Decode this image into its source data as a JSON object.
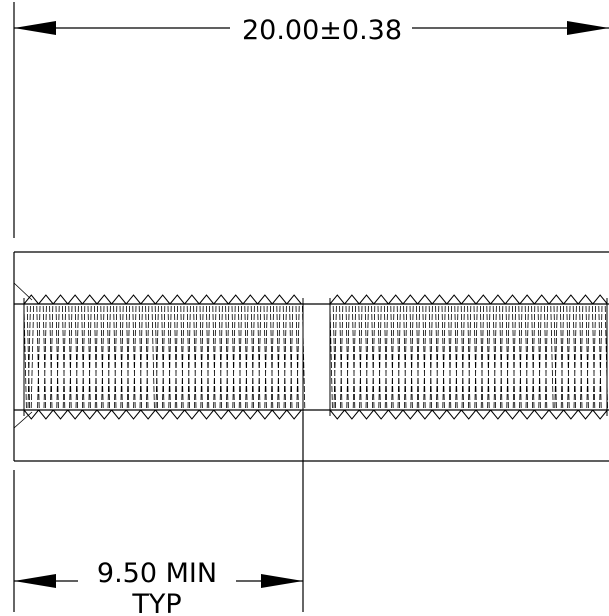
{
  "dimensions": {
    "overall_length": "20.00±0.38",
    "thread_length": "9.50 MIN",
    "thread_length_note": "TYP"
  },
  "colors": {
    "line": "#000000",
    "background": "#ffffff"
  }
}
